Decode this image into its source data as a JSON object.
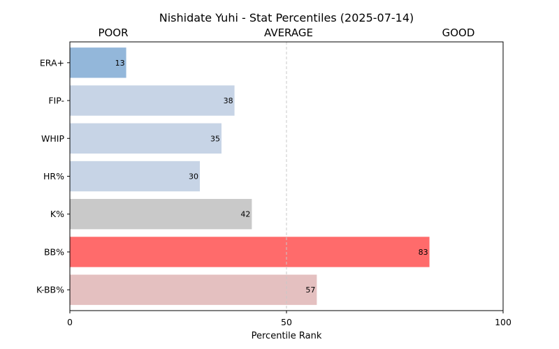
{
  "chart_data": {
    "type": "bar",
    "orientation": "horizontal",
    "title": "Nishidate Yuhi - Stat Percentiles (2025-07-14)",
    "zone_labels": [
      "POOR",
      "AVERAGE",
      "GOOD"
    ],
    "xlabel": "Percentile Rank",
    "ylabel": "",
    "xlim": [
      0,
      100
    ],
    "xticks": [
      0,
      50,
      100
    ],
    "reference_line": 50,
    "grid": false,
    "categories": [
      "ERA+",
      "FIP-",
      "WHIP",
      "HR%",
      "K%",
      "BB%",
      "K-BB%"
    ],
    "values": [
      13,
      38,
      35,
      30,
      42,
      83,
      57
    ],
    "colors": [
      "#93b7da",
      "#c7d4e6",
      "#c7d4e6",
      "#c7d4e6",
      "#c9c9c9",
      "#ff6b6b",
      "#e4c0c0"
    ]
  }
}
